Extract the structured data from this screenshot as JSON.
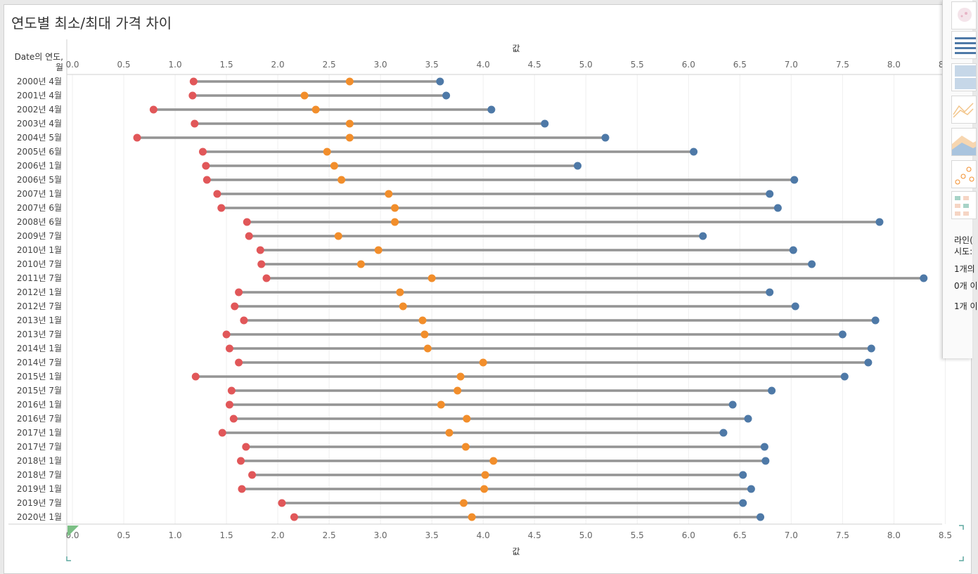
{
  "title": "연도별 최소/최대 가격 차이",
  "row_header": {
    "line1": "Date의 연도,",
    "line2": "월"
  },
  "chart_data": {
    "type": "dot-range",
    "title": "연도별 최소/최대 가격 차이",
    "xlabel": "값",
    "ylabel": "Date의 연도, 월",
    "xlim": [
      0,
      8.7
    ],
    "xticks": [
      "0.0",
      "0.5",
      "1.0",
      "1.5",
      "2.0",
      "2.5",
      "3.0",
      "3.5",
      "4.0",
      "4.5",
      "5.0",
      "5.5",
      "6.0",
      "6.5",
      "7.0",
      "7.5",
      "8.0",
      "8.5"
    ],
    "grid": true,
    "categories": [
      "2000년 4월",
      "2001년 4월",
      "2002년 4월",
      "2003년 4월",
      "2004년 5월",
      "2005년 6월",
      "2006년 1월",
      "2006년 5월",
      "2007년 1월",
      "2007년 6월",
      "2008년 6월",
      "2009년 7월",
      "2010년 1월",
      "2010년 7월",
      "2011년 7월",
      "2012년 1월",
      "2012년 7월",
      "2013년 1월",
      "2013년 7월",
      "2014년 1월",
      "2014년 7월",
      "2015년 1월",
      "2015년 7월",
      "2016년 1월",
      "2016년 7월",
      "2017년 1월",
      "2017년 7월",
      "2018년 1월",
      "2018년 7월",
      "2019년 1월",
      "2019년 7월",
      "2020년 1월"
    ],
    "series": [
      {
        "color": "#e15759",
        "values": [
          1.18,
          1.17,
          0.79,
          1.19,
          0.63,
          1.27,
          1.3,
          1.31,
          1.41,
          1.45,
          1.7,
          1.72,
          1.83,
          1.84,
          1.89,
          1.62,
          1.58,
          1.67,
          1.5,
          1.53,
          1.62,
          1.2,
          1.55,
          1.53,
          1.57,
          1.46,
          1.69,
          1.64,
          1.75,
          1.65,
          2.04,
          2.16
        ]
      },
      {
        "color": "#f28e2b",
        "values": [
          2.7,
          2.26,
          2.37,
          2.7,
          2.7,
          2.48,
          2.55,
          2.62,
          3.08,
          3.14,
          3.14,
          2.59,
          2.98,
          2.81,
          3.5,
          3.19,
          3.22,
          3.41,
          3.43,
          3.46,
          4.0,
          3.78,
          3.75,
          3.59,
          3.84,
          3.67,
          3.83,
          4.1,
          4.02,
          4.01,
          3.81,
          3.89
        ]
      },
      {
        "color": "#4e79a7",
        "values": [
          3.58,
          3.64,
          4.08,
          4.6,
          5.19,
          6.05,
          4.92,
          7.03,
          6.79,
          6.87,
          7.86,
          6.14,
          7.02,
          7.2,
          8.29,
          6.79,
          7.04,
          7.82,
          7.5,
          7.78,
          7.75,
          7.52,
          6.81,
          6.43,
          6.58,
          6.34,
          6.74,
          6.75,
          6.53,
          6.61,
          6.53,
          6.7
        ]
      }
    ]
  },
  "side_panel": {
    "text_lines": [
      "라인(",
      "시도:",
      "1개의",
      "0개 이",
      "1개 이"
    ],
    "icons": [
      "pie-chart-icon",
      "horizontal-bar-chart-icon",
      "stacked-bar-chart-icon",
      "line-chart-icon",
      "area-chart-icon",
      "scatter-plot-icon",
      "highlight-table-icon"
    ]
  }
}
